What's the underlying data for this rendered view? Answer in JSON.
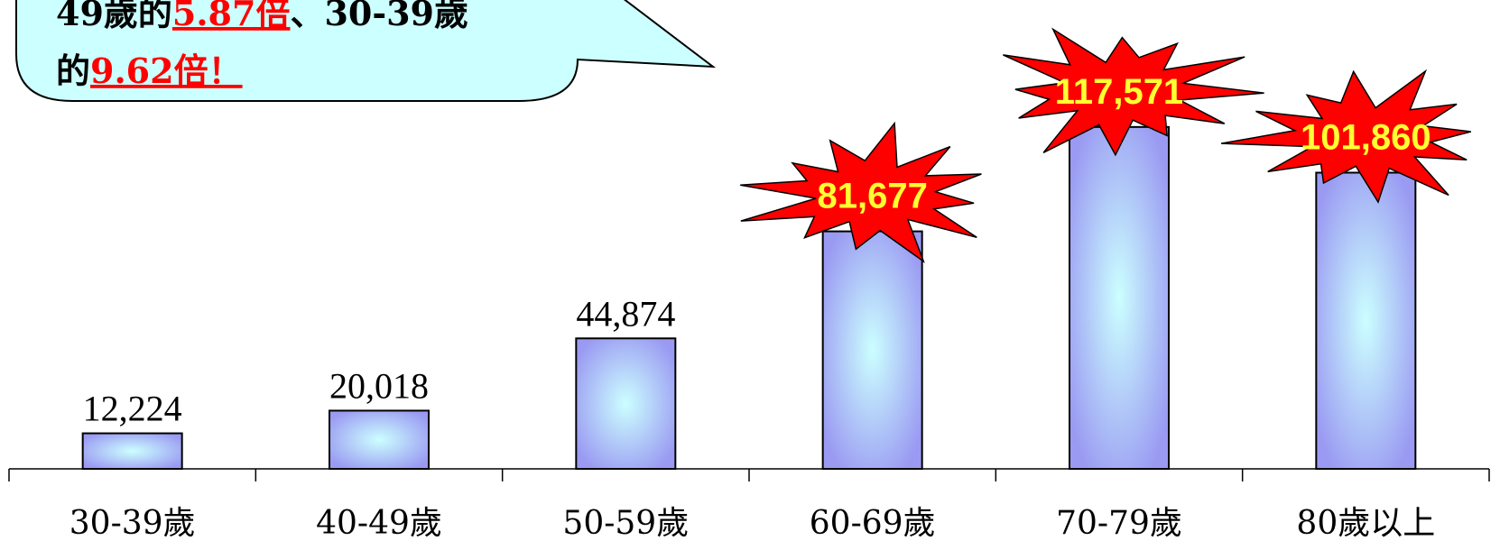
{
  "callout": {
    "line1": [
      {
        "text": "49歲的",
        "highlight": false
      },
      {
        "text": "5.87倍",
        "highlight": true
      },
      {
        "text": "、30-39歲",
        "highlight": false
      }
    ],
    "line2": [
      {
        "text": "的",
        "highlight": false
      },
      {
        "text": "9.62倍",
        "highlight": true
      },
      {
        "text": "！",
        "highlight": true
      }
    ]
  },
  "chart_data": {
    "type": "bar",
    "categories": [
      "30-39歲",
      "40-49歲",
      "50-59歲",
      "60-69歲",
      "70-79歲",
      "80歲以上"
    ],
    "values": [
      12224,
      20018,
      44874,
      81677,
      117571,
      101860
    ],
    "value_labels": [
      "12,224",
      "20,018",
      "44,874",
      "81,677",
      "117,571",
      "101,860"
    ],
    "highlighted": [
      false,
      false,
      false,
      true,
      true,
      true
    ],
    "ylim": [
      0,
      120000
    ],
    "grid": false,
    "legend": "none"
  },
  "colors": {
    "bar_edge": "#8888ee",
    "bar_center": "#ccffff",
    "burst_fill": "#ff0000",
    "burst_text": "#ffff33",
    "callout_fill": "#ccffff",
    "highlight_text": "#ff0000"
  }
}
